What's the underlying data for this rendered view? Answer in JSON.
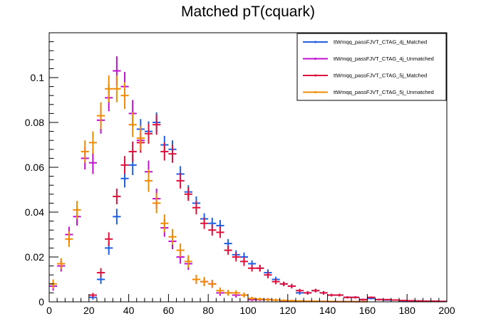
{
  "chart_data": {
    "type": "scatter",
    "title": "Matched pT(cquark)",
    "xlabel": "",
    "ylabel": "",
    "xlim": [
      0,
      200
    ],
    "ylim": [
      0,
      0.12
    ],
    "bin_width": 4,
    "x_ticks": [
      0,
      20,
      40,
      60,
      80,
      100,
      120,
      140,
      160,
      180,
      200
    ],
    "x_tick_labels": [
      "0",
      "20",
      "40",
      "60",
      "80",
      "100",
      "120",
      "140",
      "160",
      "180",
      "200"
    ],
    "y_ticks": [
      0,
      0.02,
      0.04,
      0.06,
      0.08,
      0.1
    ],
    "y_tick_labels": [
      "0",
      "0.02",
      "0.04",
      "0.06",
      "0.08",
      "0.1"
    ],
    "grid": false,
    "legend_position": "top-right",
    "x": [
      2,
      6,
      10,
      14,
      18,
      22,
      26,
      30,
      34,
      38,
      42,
      46,
      50,
      54,
      58,
      62,
      66,
      70,
      74,
      78,
      82,
      86,
      90,
      94,
      98,
      102,
      106,
      110,
      114,
      118,
      122,
      126,
      130,
      134,
      138,
      142,
      146,
      150,
      154,
      158,
      162,
      166,
      170,
      174,
      178,
      182,
      186,
      190,
      194,
      198
    ],
    "series": [
      {
        "name": "ttWmqq_passFJVT_CTAG_4j_Matched",
        "color": "#1f5fe6",
        "values": [
          0,
          0,
          0,
          0,
          0,
          0.002,
          0.01,
          0.024,
          0.038,
          0.055,
          0.061,
          0.077,
          0.076,
          0.08,
          0.07,
          0.068,
          0.057,
          0.049,
          0.044,
          0.037,
          0.035,
          0.034,
          0.026,
          0.021,
          0.02,
          0.017,
          0.015,
          0.013,
          0.01,
          0.008,
          0.007,
          0.004,
          0.004,
          0.005,
          0.004,
          0.003,
          0.003,
          0.002,
          0.002,
          0.001,
          0.0015,
          0.001,
          0.0008,
          0.0008,
          0.0005,
          0.0005,
          0.0004,
          0.0003,
          0.0003,
          0.0002
        ],
        "errors": [
          0,
          0,
          0,
          0,
          0,
          0.001,
          0.002,
          0.003,
          0.0035,
          0.004,
          0.0045,
          0.0045,
          0.0045,
          0.0045,
          0.004,
          0.004,
          0.0035,
          0.003,
          0.003,
          0.0025,
          0.0025,
          0.0025,
          0.002,
          0.002,
          0.002,
          0.0015,
          0.0015,
          0.0015,
          0.0012,
          0.001,
          0.001,
          0.0008,
          0.0008,
          0.0008,
          0.0008,
          0.0006,
          0.0006,
          0.0005,
          0.0005,
          0.0004,
          0.0004,
          0.0004,
          0.0003,
          0.0003,
          0.0003,
          0.0003,
          0.0002,
          0.0002,
          0.0002,
          0.0002
        ]
      },
      {
        "name": "ttWmqq_passFJVT_CTAG_4j_Unmatched",
        "color": "#c010d0",
        "values": [
          0.007,
          0.016,
          0.03,
          0.038,
          0.064,
          0.062,
          0.081,
          0.091,
          0.103,
          0.096,
          0.084,
          0.072,
          0.058,
          0.046,
          0.033,
          0.027,
          0.02,
          0.017,
          0.01,
          0.009,
          0.008,
          0.004,
          0.004,
          0.003,
          0.003,
          0.001,
          0.001,
          0.001,
          0.0008,
          0.0005,
          0.0004,
          0.0003,
          0.0003,
          0.0002,
          0.0002,
          0.0001,
          0.0001,
          0.0001,
          0.0001,
          0.0001,
          0,
          0,
          0,
          0,
          0,
          0,
          0,
          0,
          0,
          0
        ],
        "errors": [
          0.002,
          0.0025,
          0.0035,
          0.004,
          0.005,
          0.005,
          0.006,
          0.006,
          0.0065,
          0.0065,
          0.006,
          0.0055,
          0.005,
          0.0045,
          0.004,
          0.0035,
          0.003,
          0.0028,
          0.002,
          0.002,
          0.0018,
          0.0013,
          0.0013,
          0.0011,
          0.0011,
          0.0007,
          0.0007,
          0.0007,
          0.0006,
          0.0005,
          0.0004,
          0.0003,
          0.0003,
          0.0003,
          0.0003,
          0.0002,
          0.0002,
          0.0002,
          0.0002,
          0.0002,
          0,
          0,
          0,
          0,
          0,
          0,
          0,
          0,
          0,
          0
        ]
      },
      {
        "name": "ttWmqq_passFJVT_CTAG_5j_Matched",
        "color": "#e0103c",
        "values": [
          0,
          0,
          0,
          0,
          0,
          0.003,
          0.013,
          0.028,
          0.047,
          0.061,
          0.067,
          0.071,
          0.075,
          0.079,
          0.067,
          0.066,
          0.054,
          0.048,
          0.042,
          0.035,
          0.032,
          0.031,
          0.023,
          0.02,
          0.018,
          0.015,
          0.015,
          0.012,
          0.009,
          0.008,
          0.007,
          0.005,
          0.004,
          0.005,
          0.004,
          0.003,
          0.003,
          0.002,
          0.002,
          0.001,
          0.002,
          0.001,
          0.001,
          0.0008,
          0.0006,
          0.0005,
          0.0004,
          0.0003,
          0.0003,
          0.0002
        ],
        "errors": [
          0,
          0,
          0,
          0,
          0,
          0.001,
          0.002,
          0.003,
          0.0035,
          0.004,
          0.0045,
          0.0045,
          0.0045,
          0.0045,
          0.004,
          0.004,
          0.0035,
          0.003,
          0.003,
          0.0025,
          0.0025,
          0.0025,
          0.002,
          0.002,
          0.002,
          0.0015,
          0.0015,
          0.0015,
          0.0012,
          0.001,
          0.001,
          0.0008,
          0.0008,
          0.0008,
          0.0008,
          0.0006,
          0.0006,
          0.0005,
          0.0005,
          0.0004,
          0.0004,
          0.0004,
          0.0003,
          0.0003,
          0.0003,
          0.0003,
          0.0002,
          0.0002,
          0.0002,
          0.0002
        ]
      },
      {
        "name": "ttWmqq_passFJVT_CTAG_5j_Unmatched",
        "color": "#f08c00",
        "values": [
          0.008,
          0.017,
          0.028,
          0.041,
          0.067,
          0.071,
          0.083,
          0.095,
          0.095,
          0.092,
          0.079,
          0.073,
          0.054,
          0.044,
          0.035,
          0.029,
          0.023,
          0.018,
          0.01,
          0.009,
          0.008,
          0.005,
          0.004,
          0.004,
          0.003,
          0.0015,
          0.0012,
          0.001,
          0.0008,
          0.0006,
          0.0005,
          0.0004,
          0.0003,
          0.0003,
          0.0002,
          0.0002,
          0.0001,
          0.0001,
          0.0001,
          0.0001,
          0,
          0,
          0,
          0,
          0,
          0,
          0,
          0,
          0,
          0
        ],
        "errors": [
          0.002,
          0.0025,
          0.0035,
          0.004,
          0.005,
          0.005,
          0.006,
          0.006,
          0.006,
          0.006,
          0.0055,
          0.0055,
          0.005,
          0.0045,
          0.004,
          0.0035,
          0.003,
          0.0028,
          0.002,
          0.002,
          0.0018,
          0.0014,
          0.0013,
          0.0012,
          0.0011,
          0.0008,
          0.0007,
          0.0007,
          0.0006,
          0.0005,
          0.0004,
          0.0003,
          0.0003,
          0.0003,
          0.0003,
          0.0002,
          0.0002,
          0.0002,
          0.0002,
          0.0002,
          0,
          0,
          0,
          0,
          0,
          0,
          0,
          0,
          0,
          0
        ]
      }
    ]
  }
}
